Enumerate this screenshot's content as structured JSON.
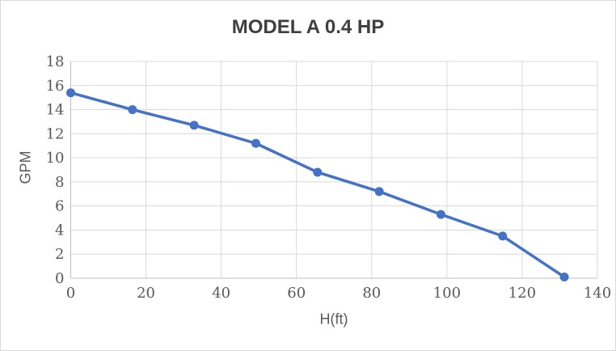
{
  "window": {
    "background": "#ffffff",
    "border_color": "#d9d9d9"
  },
  "chart_data": {
    "type": "line",
    "title": "MODEL A 0.4 HP",
    "xlabel": "H(ft)",
    "ylabel": "GPM",
    "series": [
      {
        "name": "MODEL A 0.4 HP",
        "color": "#4472c4",
        "marker": "circle",
        "x": [
          0,
          16.4,
          32.8,
          49.2,
          65.6,
          82,
          98.4,
          114.8,
          131.2
        ],
        "y": [
          15.4,
          14,
          12.7,
          11.2,
          8.8,
          7.2,
          5.3,
          3.5,
          0.1
        ]
      }
    ],
    "xlim": [
      0,
      140
    ],
    "ylim": [
      0,
      18
    ],
    "xticks": [
      0,
      20,
      40,
      60,
      80,
      100,
      120,
      140
    ],
    "yticks": [
      0,
      2,
      4,
      6,
      8,
      10,
      12,
      14,
      16,
      18
    ],
    "grid": true,
    "legend": "none",
    "colors": {
      "gridline": "#d9d9d9",
      "axis_line": "#bfbfbf",
      "tick_label": "#595959",
      "axis_title": "#595959",
      "title": "#3f3f3f"
    }
  }
}
